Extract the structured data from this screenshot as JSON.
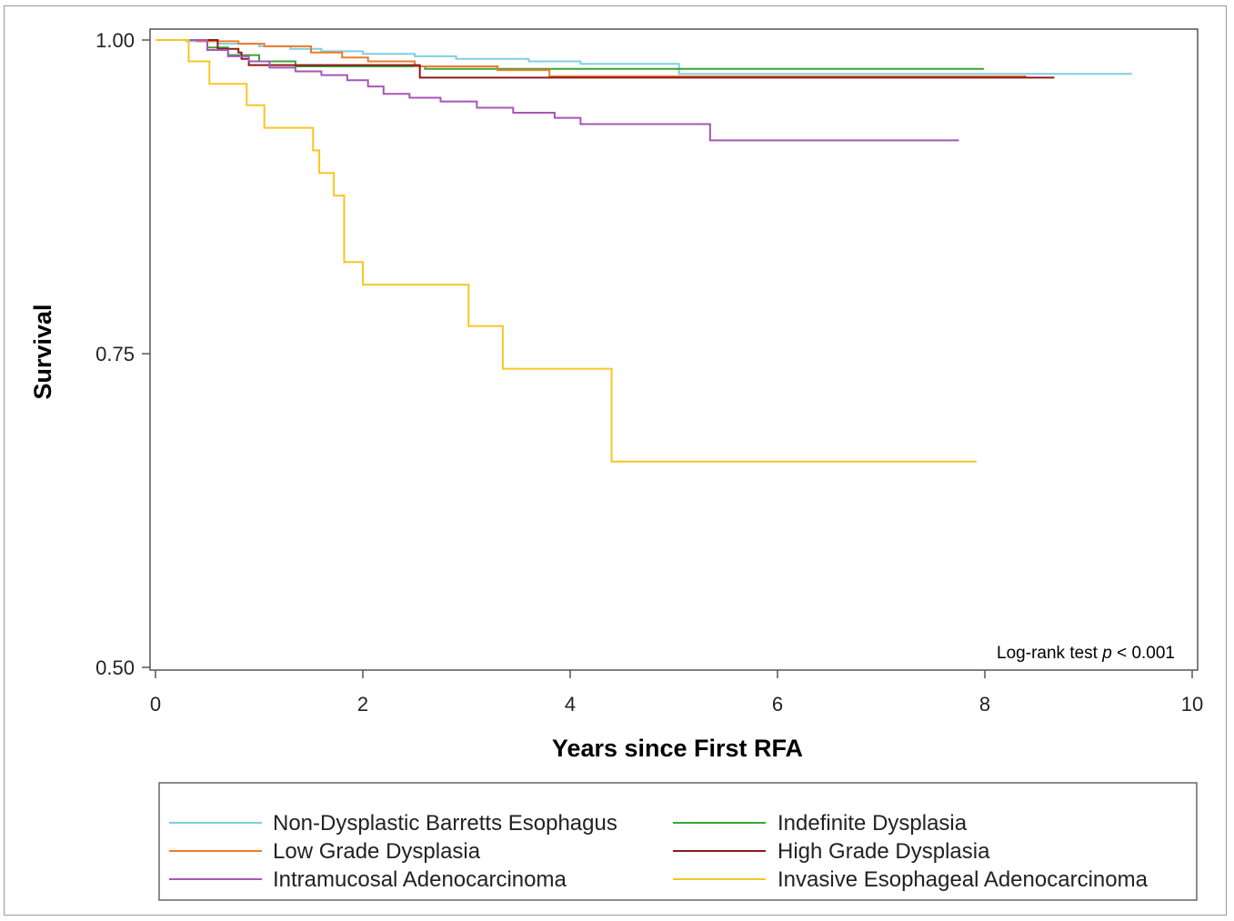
{
  "chart_data": {
    "type": "line",
    "title": "",
    "xlabel": "Years since First RFA",
    "ylabel": "Survival",
    "xlim": [
      0,
      10
    ],
    "ylim": [
      0.5,
      1.0
    ],
    "xticks": [
      "0",
      "2",
      "4",
      "6",
      "8",
      "10"
    ],
    "yticks": [
      "0.50",
      "0.75",
      "1.00"
    ],
    "annotation": {
      "prefix": "Log-rank test ",
      "italic": "p",
      "suffix": " < 0.001"
    },
    "legend_position": "bottom",
    "grid": false,
    "series": [
      {
        "name": "Non-Dysplastic Barretts Esophagus",
        "color": "#7ecfe0",
        "x": [
          0,
          0.3,
          0.6,
          1.0,
          1.3,
          1.6,
          2.0,
          2.5,
          2.9,
          3.6,
          4.1,
          5.05,
          9.42
        ],
        "y": [
          1.0,
          0.999,
          0.997,
          0.995,
          0.993,
          0.991,
          0.989,
          0.987,
          0.985,
          0.983,
          0.981,
          0.973,
          0.973
        ]
      },
      {
        "name": "Indefinite Dysplasia",
        "color": "#3aa335",
        "x": [
          0,
          0.5,
          0.7,
          1.0,
          1.35,
          2.35,
          2.6,
          3.0,
          7.99
        ],
        "y": [
          1.0,
          0.994,
          0.988,
          0.983,
          0.979,
          0.979,
          0.977,
          0.977,
          0.977
        ]
      },
      {
        "name": "Low Grade Dysplasia",
        "color": "#f07a2a",
        "x": [
          0,
          0.4,
          0.8,
          1.05,
          1.5,
          1.8,
          2.05,
          2.5,
          3.3,
          3.8,
          8.4
        ],
        "y": [
          1.0,
          0.999,
          0.997,
          0.995,
          0.99,
          0.986,
          0.983,
          0.979,
          0.976,
          0.971,
          0.971
        ]
      },
      {
        "name": "High Grade Dysplasia",
        "color": "#8b1a1a",
        "x": [
          0,
          0.55,
          0.6,
          0.8,
          0.83,
          0.9,
          2.55,
          8.67
        ],
        "y": [
          1.0,
          1.0,
          0.993,
          0.99,
          0.985,
          0.98,
          0.97,
          0.97
        ]
      },
      {
        "name": "Intramucosal Adenocarcinoma",
        "color": "#a656b8",
        "x": [
          0,
          0.5,
          0.7,
          0.9,
          1.1,
          1.35,
          1.6,
          1.85,
          2.05,
          2.2,
          2.45,
          2.75,
          3.1,
          3.45,
          3.85,
          4.1,
          5.35,
          7.75
        ],
        "y": [
          1.0,
          0.992,
          0.987,
          0.983,
          0.978,
          0.975,
          0.972,
          0.968,
          0.963,
          0.957,
          0.954,
          0.951,
          0.946,
          0.942,
          0.938,
          0.933,
          0.92,
          0.92
        ]
      },
      {
        "name": "Invasive Esophageal Adenocarcinoma",
        "color": "#f8c622",
        "x": [
          0,
          0.32,
          0.52,
          0.88,
          1.05,
          1.52,
          1.58,
          1.72,
          1.82,
          2.0,
          3.02,
          3.35,
          4.4,
          7.92
        ],
        "y": [
          1.0,
          0.983,
          0.965,
          0.948,
          0.93,
          0.912,
          0.894,
          0.876,
          0.823,
          0.805,
          0.772,
          0.738,
          0.664,
          0.664
        ]
      }
    ]
  }
}
